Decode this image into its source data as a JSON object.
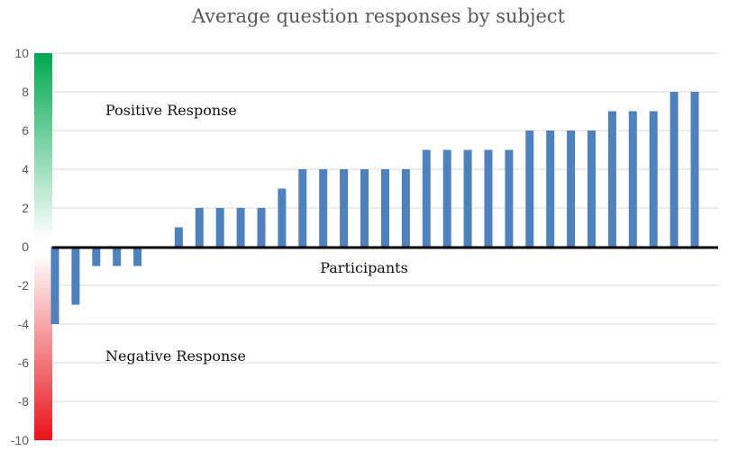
{
  "chart_data": {
    "type": "bar",
    "title": "Average question responses by subject",
    "xlabel": "Participants",
    "ylabel": "",
    "ylim": [
      -10,
      10
    ],
    "yticks": [
      "10",
      "8",
      "6",
      "4",
      "2",
      "0",
      "-2",
      "-4",
      "-6",
      "-8",
      "-10"
    ],
    "values": [
      -4,
      -3,
      -1,
      -1,
      -1,
      0,
      1,
      2,
      2,
      2,
      2,
      3,
      4,
      4,
      4,
      4,
      4,
      4,
      5,
      5,
      5,
      5,
      5,
      6,
      6,
      6,
      6,
      7,
      7,
      7,
      8,
      8
    ],
    "annotations": {
      "positive": "Positive Response",
      "negative": "Negative Response"
    },
    "grid": true,
    "legend": "none"
  },
  "colors": {
    "bar": "#4F81BD",
    "positive": "#00A850",
    "negative": "#E8141B",
    "grid": "#D9D9D9",
    "axis": "#000000"
  }
}
